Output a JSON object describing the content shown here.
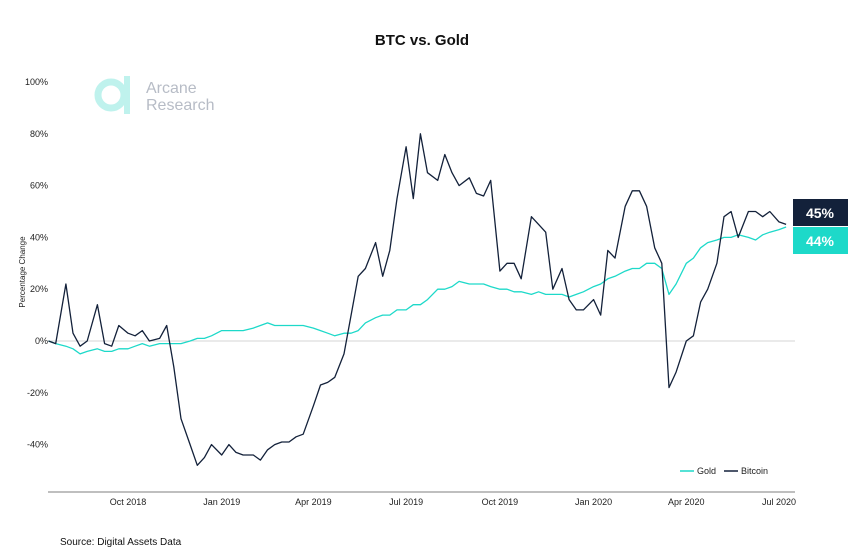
{
  "chart_data": {
    "type": "line",
    "title": "BTC vs. Gold",
    "xlabel": "",
    "ylabel": "Percentage Change",
    "ylim": [
      -58,
      104
    ],
    "yticks": [
      "-40%",
      "-20%",
      "0%",
      "20%",
      "40%",
      "60%",
      "80%",
      "100%"
    ],
    "ytick_values": [
      -40,
      -20,
      0,
      20,
      40,
      60,
      80,
      100
    ],
    "xticks": [
      "Oct 2018",
      "Jan 2019",
      "Apr 2019",
      "Jul 2019",
      "Oct 2019",
      "Jan 2020",
      "Apr 2020",
      "Jul 2020"
    ],
    "xtick_dates": [
      "2018-10-01",
      "2019-01-01",
      "2019-04-01",
      "2019-07-01",
      "2019-10-01",
      "2020-01-01",
      "2020-04-01",
      "2020-07-01"
    ],
    "grid": false,
    "zero_line": true,
    "legend": "bottom-right",
    "dates": [
      "2018-07-15",
      "2018-07-22",
      "2018-08-01",
      "2018-08-08",
      "2018-08-15",
      "2018-08-22",
      "2018-09-01",
      "2018-09-08",
      "2018-09-15",
      "2018-09-22",
      "2018-10-01",
      "2018-10-08",
      "2018-10-15",
      "2018-10-22",
      "2018-11-01",
      "2018-11-08",
      "2018-11-15",
      "2018-11-22",
      "2018-12-01",
      "2018-12-08",
      "2018-12-15",
      "2018-12-22",
      "2019-01-01",
      "2019-01-08",
      "2019-01-15",
      "2019-01-22",
      "2019-02-01",
      "2019-02-08",
      "2019-02-15",
      "2019-02-22",
      "2019-03-01",
      "2019-03-08",
      "2019-03-15",
      "2019-03-22",
      "2019-04-01",
      "2019-04-08",
      "2019-04-15",
      "2019-04-22",
      "2019-05-01",
      "2019-05-08",
      "2019-05-15",
      "2019-05-22",
      "2019-06-01",
      "2019-06-08",
      "2019-06-15",
      "2019-06-22",
      "2019-07-01",
      "2019-07-08",
      "2019-07-15",
      "2019-07-22",
      "2019-08-01",
      "2019-08-08",
      "2019-08-15",
      "2019-08-22",
      "2019-09-01",
      "2019-09-08",
      "2019-09-15",
      "2019-09-22",
      "2019-10-01",
      "2019-10-08",
      "2019-10-15",
      "2019-10-22",
      "2019-11-01",
      "2019-11-08",
      "2019-11-15",
      "2019-11-22",
      "2019-12-01",
      "2019-12-08",
      "2019-12-15",
      "2019-12-22",
      "2020-01-01",
      "2020-01-08",
      "2020-01-15",
      "2020-01-22",
      "2020-02-01",
      "2020-02-08",
      "2020-02-15",
      "2020-02-22",
      "2020-03-01",
      "2020-03-08",
      "2020-03-15",
      "2020-03-22",
      "2020-04-01",
      "2020-04-08",
      "2020-04-15",
      "2020-04-22",
      "2020-05-01",
      "2020-05-08",
      "2020-05-15",
      "2020-05-22",
      "2020-06-01",
      "2020-06-08",
      "2020-06-15",
      "2020-06-22",
      "2020-07-01",
      "2020-07-08"
    ],
    "series": [
      {
        "name": "Gold",
        "color": "#1dd9c9",
        "end_label": "44%",
        "values": [
          0,
          -1,
          -2,
          -3,
          -5,
          -4,
          -3,
          -4,
          -4,
          -3,
          -3,
          -2,
          -1,
          -2,
          -1,
          -1,
          -1,
          -1,
          0,
          1,
          1,
          2,
          4,
          4,
          4,
          4,
          5,
          6,
          7,
          6,
          6,
          6,
          6,
          6,
          5,
          4,
          3,
          2,
          3,
          3,
          4,
          7,
          9,
          10,
          10,
          12,
          12,
          14,
          14,
          16,
          20,
          20,
          21,
          23,
          22,
          22,
          22,
          21,
          20,
          20,
          19,
          19,
          18,
          19,
          18,
          18,
          18,
          17,
          18,
          19,
          21,
          22,
          24,
          25,
          27,
          28,
          28,
          30,
          30,
          28,
          18,
          22,
          30,
          32,
          36,
          38,
          39,
          40,
          40,
          41,
          40,
          39,
          41,
          42,
          43,
          44
        ]
      },
      {
        "name": "Bitcoin",
        "color": "#13213a",
        "end_label": "45%",
        "values": [
          0,
          -1,
          22,
          3,
          -2,
          0,
          14,
          -1,
          -2,
          6,
          3,
          2,
          4,
          0,
          1,
          6,
          -10,
          -30,
          -40,
          -48,
          -45,
          -40,
          -44,
          -40,
          -43,
          -44,
          -44,
          -46,
          -42,
          -40,
          -39,
          -39,
          -37,
          -36,
          -25,
          -17,
          -16,
          -14,
          -5,
          10,
          25,
          28,
          38,
          25,
          35,
          55,
          75,
          55,
          80,
          65,
          62,
          72,
          65,
          60,
          63,
          57,
          56,
          62,
          27,
          30,
          30,
          24,
          48,
          45,
          42,
          20,
          28,
          16,
          12,
          12,
          16,
          10,
          35,
          32,
          52,
          58,
          58,
          52,
          36,
          30,
          -18,
          -12,
          0,
          2,
          15,
          20,
          30,
          48,
          50,
          40,
          50,
          50,
          48,
          50,
          46,
          45
        ]
      }
    ]
  },
  "logo": {
    "line1": "Arcane",
    "line2": "Research"
  },
  "source": "Source: Digital Assets Data"
}
